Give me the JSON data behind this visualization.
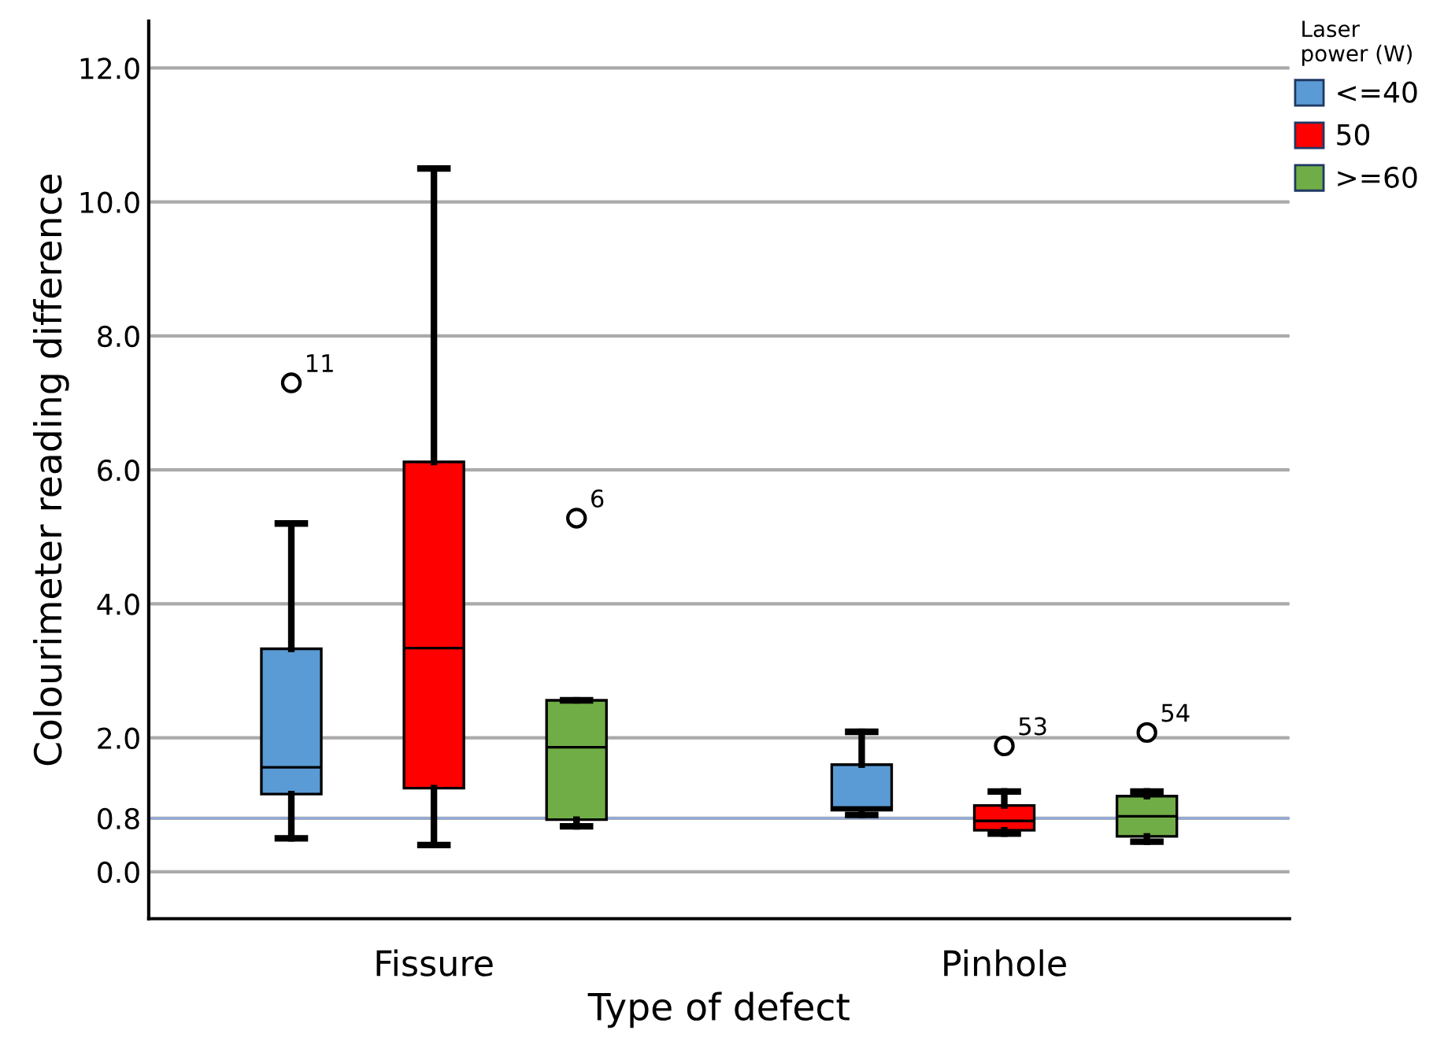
{
  "chart_data": {
    "type": "box",
    "xlabel": "Type of defect",
    "ylabel": "Colourimeter reading difference",
    "categories": [
      "Fissure",
      "Pinhole"
    ],
    "series": [
      {
        "name": "<=40",
        "color": "#5b9bd5",
        "boxes": [
          {
            "low": 0.5,
            "q1": 1.16,
            "median": 1.56,
            "q3": 3.33,
            "high": 5.2,
            "outliers": [
              7.3
            ]
          },
          {
            "low": 0.85,
            "q1": 0.92,
            "median": 0.96,
            "q3": 1.6,
            "high": 2.09
          }
        ]
      },
      {
        "name": "50",
        "color": "#ff0000",
        "boxes": [
          {
            "low": 0.4,
            "q1": 1.25,
            "median": 3.34,
            "q3": 6.12,
            "high": 10.5
          },
          {
            "low": 0.57,
            "q1": 0.62,
            "median": 0.76,
            "q3": 0.99,
            "high": 1.2,
            "outliers": [
              1.88
            ]
          }
        ]
      },
      {
        "name": ">=60",
        "color": "#70ad47",
        "boxes": [
          {
            "low": 0.68,
            "q1": 0.78,
            "median": 1.86,
            "q3": 2.56,
            "high": 2.56,
            "outliers": [
              5.28
            ]
          },
          {
            "low": 0.45,
            "q1": 0.53,
            "median": 0.83,
            "q3": 1.13,
            "high": 1.2,
            "outliers": [
              2.08
            ]
          }
        ]
      }
    ],
    "ylim": [
      -0.7,
      12.7
    ],
    "yticks": [
      {
        "value": 0,
        "label": "0.0"
      },
      {
        "value": 0.8,
        "label": "0.8"
      },
      {
        "value": 2,
        "label": "2.0"
      },
      {
        "value": 4,
        "label": "4.0"
      },
      {
        "value": 6,
        "label": "6.0"
      },
      {
        "value": 8,
        "label": "8.0"
      },
      {
        "value": 10,
        "label": "10.0"
      },
      {
        "value": 12,
        "label": "12.0"
      }
    ],
    "ref_lines": [
      {
        "axis": "y",
        "value": 0.8,
        "color": "#8faadc"
      }
    ],
    "grid": "y",
    "legend": "top right",
    "legend_title": "Laser\npower (W)",
    "annotations": [
      "11",
      "6",
      "53",
      "54"
    ]
  }
}
